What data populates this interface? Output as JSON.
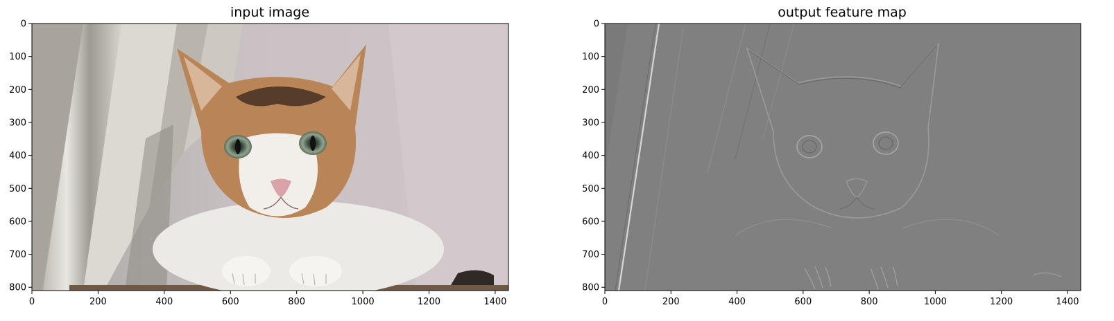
{
  "chart_data": [
    {
      "type": "image",
      "title": "input image",
      "image_content": "photo of a calico cat lying in front of white curtains",
      "xlim": [
        0,
        1440
      ],
      "ylim": [
        810,
        0
      ],
      "xticks": [
        0,
        200,
        400,
        600,
        800,
        1000,
        1200,
        1400
      ],
      "yticks": [
        0,
        100,
        200,
        300,
        400,
        500,
        600,
        700,
        800
      ]
    },
    {
      "type": "image",
      "title": "output feature map",
      "image_content": "grayscale edge-filtered (embossed) version of the cat photo",
      "colormap": "gray",
      "xlim": [
        0,
        1440
      ],
      "ylim": [
        810,
        0
      ],
      "xticks": [
        0,
        200,
        400,
        600,
        800,
        1000,
        1200,
        1400
      ],
      "yticks": [
        0,
        100,
        200,
        300,
        400,
        500,
        600,
        700,
        800
      ]
    }
  ]
}
